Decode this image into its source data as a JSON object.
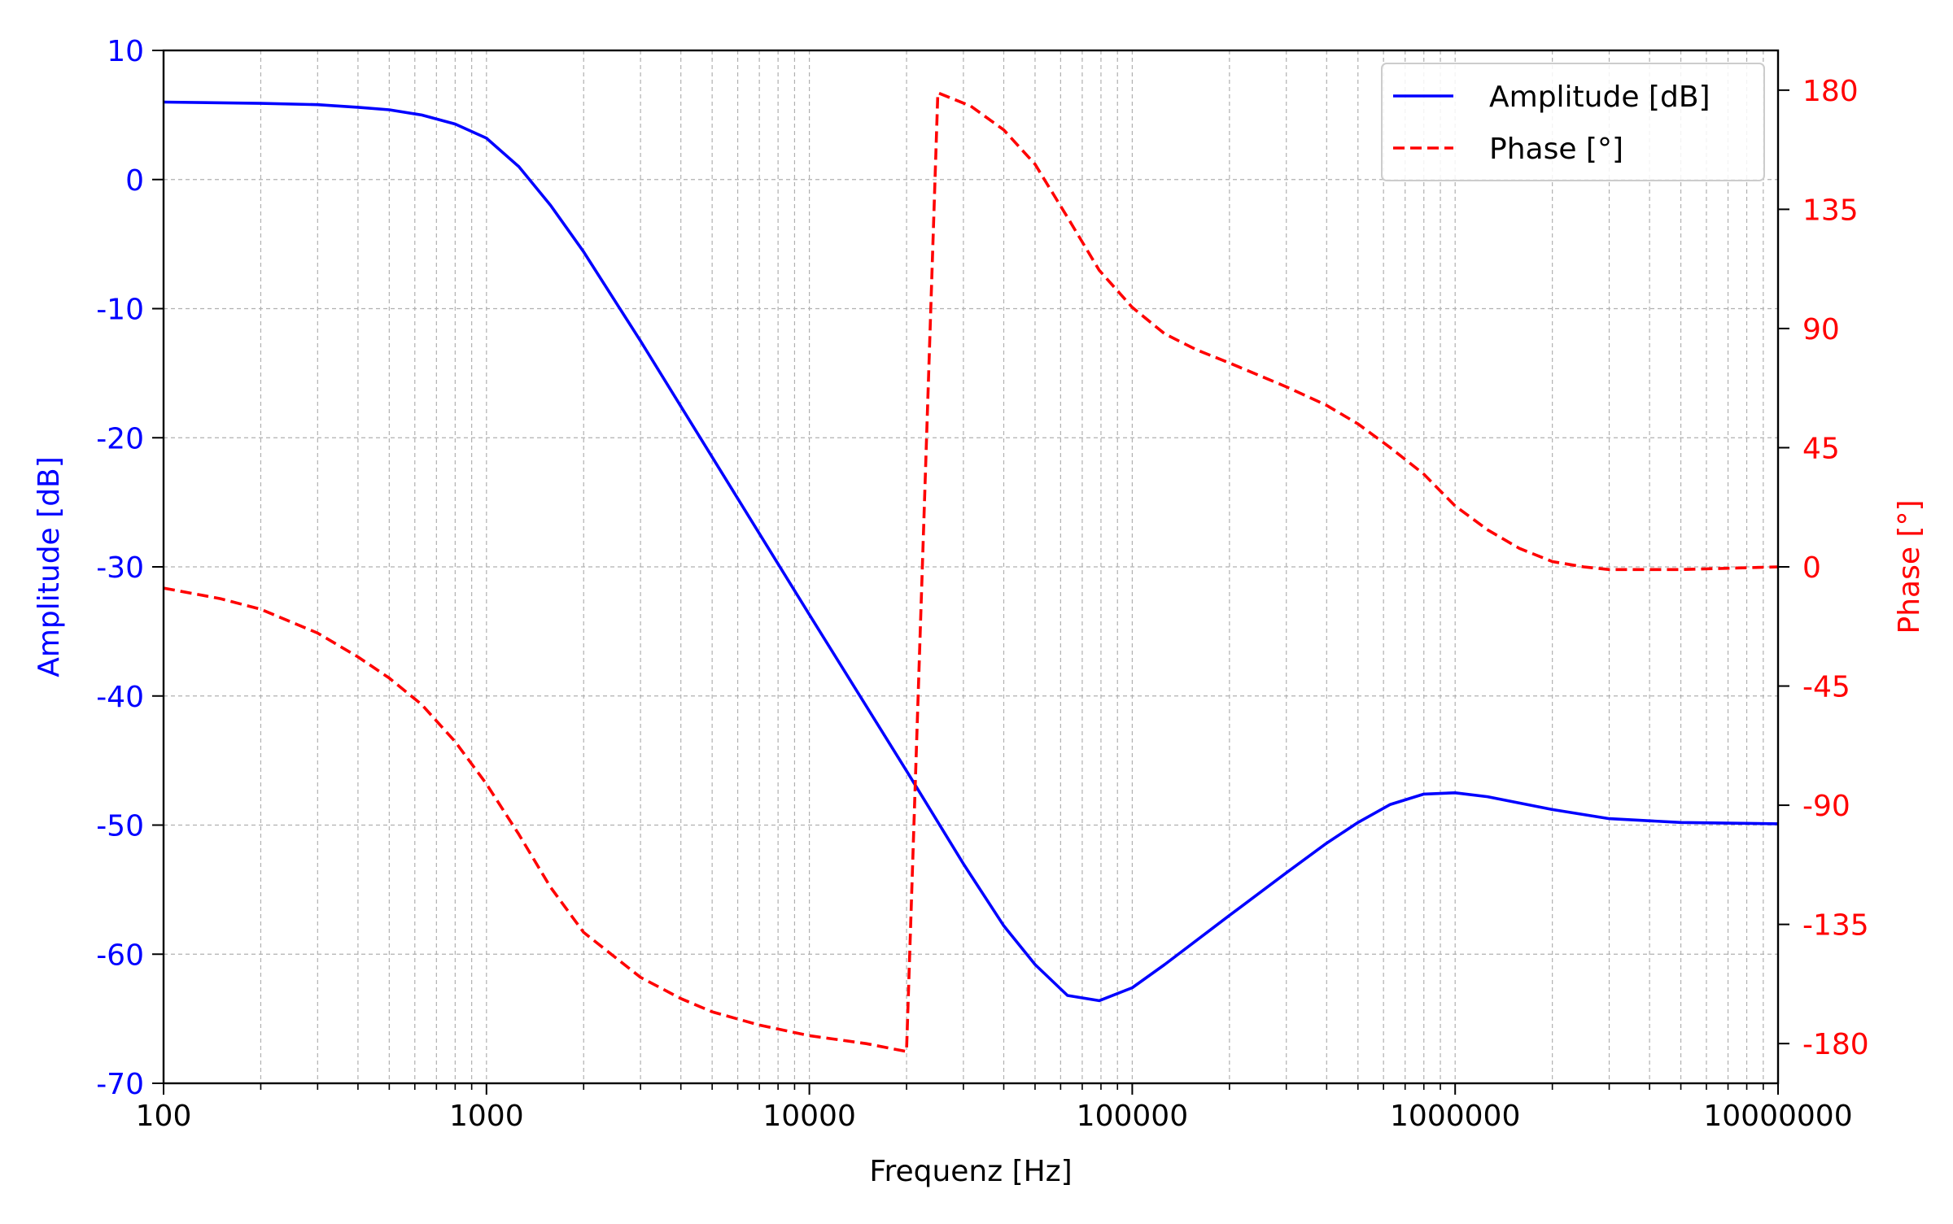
{
  "chart_data": {
    "type": "line",
    "xlabel": "Frequenz [Hz]",
    "ylabel_left": "Amplitude [dB]",
    "ylabel_right": "Phase [°]",
    "x_scale": "log",
    "xlim": [
      100,
      10000000
    ],
    "ylim_left": [
      -70,
      10
    ],
    "ylim_right": [
      -195,
      195
    ],
    "x_ticks": [
      100,
      1000,
      10000,
      100000,
      1000000,
      10000000
    ],
    "x_tick_labels": [
      "100",
      "1000",
      "10000",
      "100000",
      "1000000",
      "10000000"
    ],
    "y_left_ticks": [
      10,
      0,
      -10,
      -20,
      -30,
      -40,
      -50,
      -60,
      -70
    ],
    "y_left_tick_labels": [
      "10",
      "0",
      "-10",
      "-20",
      "-30",
      "-40",
      "-50",
      "-60",
      "-70"
    ],
    "y_right_ticks": [
      180,
      135,
      90,
      45,
      0,
      -45,
      -90,
      -135,
      -180
    ],
    "y_right_tick_labels": [
      "180",
      "135",
      "90",
      "45",
      "0",
      "-45",
      "-90",
      "-135",
      "-180"
    ],
    "grid": true,
    "legend_position": "top-right",
    "series": [
      {
        "name": "Amplitude [dB]",
        "axis": "left",
        "color": "#0000ff",
        "line_style": "solid",
        "x": [
          100,
          200,
          300,
          400,
          500,
          630,
          800,
          1000,
          1260,
          1580,
          2000,
          3000,
          5000,
          10000,
          20000,
          30000,
          40000,
          50000,
          63000,
          79000,
          100000,
          126000,
          200000,
          300000,
          400000,
          500000,
          630000,
          800000,
          1000000,
          1260000,
          2000000,
          3000000,
          5000000,
          10000000
        ],
        "y": [
          6.0,
          5.9,
          5.8,
          5.6,
          5.4,
          5.0,
          4.3,
          3.2,
          1.0,
          -2.0,
          -5.6,
          -12.5,
          -21.5,
          -33.7,
          -45.8,
          -53.0,
          -57.8,
          -60.8,
          -63.2,
          -63.6,
          -62.6,
          -60.8,
          -57.0,
          -53.7,
          -51.4,
          -49.8,
          -48.4,
          -47.6,
          -47.5,
          -47.8,
          -48.8,
          -49.5,
          -49.8,
          -49.9
        ]
      },
      {
        "name": "Phase [°]",
        "axis": "right",
        "color": "#ff0000",
        "line_style": "dashed",
        "x": [
          100,
          150,
          200,
          300,
          400,
          500,
          630,
          800,
          1000,
          1260,
          1580,
          2000,
          3000,
          4000,
          5000,
          7000,
          10000,
          15000,
          20000,
          25000,
          31600,
          40000,
          50000,
          63000,
          79000,
          100000,
          126000,
          158000,
          200000,
          300000,
          400000,
          500000,
          630000,
          800000,
          1000000,
          1260000,
          1580000,
          2000000,
          2500000,
          3000000,
          4000000,
          5000000,
          10000000
        ],
        "y": [
          -8,
          -12,
          -16,
          -25,
          -34,
          -42,
          -52,
          -66,
          -82,
          -101,
          -121,
          -138,
          -155,
          -163,
          -168,
          -173,
          -177,
          -180,
          -183,
          179,
          174,
          165,
          152,
          132,
          112,
          98,
          88,
          82,
          77,
          68,
          61,
          54,
          45,
          35,
          23,
          14,
          7,
          2,
          0,
          -1,
          -1,
          -1,
          0
        ]
      }
    ]
  }
}
